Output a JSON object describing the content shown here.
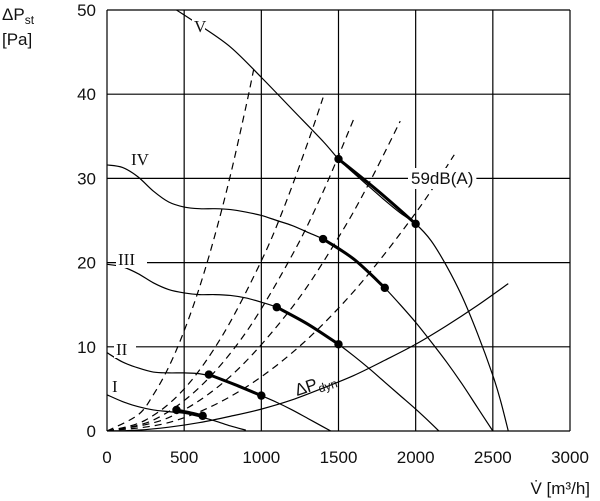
{
  "chart_data": {
    "type": "line",
    "title": "",
    "xlabel": "V̇ [m³/h]",
    "ylabel_main": "ΔP",
    "ylabel_sub": "st",
    "ylabel_unit": "[Pa]",
    "xlim": [
      0,
      3000
    ],
    "ylim": [
      0,
      50
    ],
    "x_ticks": [
      0,
      500,
      1000,
      1500,
      2000,
      2500,
      3000
    ],
    "y_ticks": [
      0,
      10,
      20,
      30,
      40,
      50
    ],
    "grid": true,
    "fan_curves": [
      {
        "label": "I",
        "points": [
          [
            0,
            4.3
          ],
          [
            100,
            3.5
          ],
          [
            200,
            2.9
          ],
          [
            300,
            2.5
          ],
          [
            400,
            2.3
          ],
          [
            500,
            2.1
          ],
          [
            600,
            1.7
          ],
          [
            700,
            1.2
          ],
          [
            800,
            0.6
          ],
          [
            900,
            0.1
          ]
        ]
      },
      {
        "label": "II",
        "points": [
          [
            0,
            9.3
          ],
          [
            100,
            8.2
          ],
          [
            200,
            7.5
          ],
          [
            300,
            7.0
          ],
          [
            400,
            6.9
          ],
          [
            500,
            6.9
          ],
          [
            600,
            6.8
          ],
          [
            700,
            6.4
          ],
          [
            800,
            5.7
          ],
          [
            900,
            5.0
          ],
          [
            1000,
            4.2
          ],
          [
            1100,
            3.4
          ],
          [
            1200,
            2.5
          ],
          [
            1300,
            1.5
          ],
          [
            1400,
            0.5
          ],
          [
            1450,
            0
          ]
        ]
      },
      {
        "label": "III",
        "points": [
          [
            0,
            19.8
          ],
          [
            100,
            19.5
          ],
          [
            200,
            18.7
          ],
          [
            300,
            17.6
          ],
          [
            400,
            16.8
          ],
          [
            500,
            16.4
          ],
          [
            600,
            16.2
          ],
          [
            700,
            16.2
          ],
          [
            800,
            16.1
          ],
          [
            900,
            15.8
          ],
          [
            1000,
            15.3
          ],
          [
            1100,
            14.7
          ],
          [
            1200,
            13.8
          ],
          [
            1300,
            12.8
          ],
          [
            1400,
            11.6
          ],
          [
            1500,
            10.3
          ],
          [
            1600,
            8.9
          ],
          [
            1700,
            7.4
          ],
          [
            1800,
            5.8
          ],
          [
            1900,
            4.2
          ],
          [
            2000,
            2.6
          ],
          [
            2100,
            0.9
          ],
          [
            2150,
            0
          ]
        ]
      },
      {
        "label": "IV",
        "points": [
          [
            0,
            31.6
          ],
          [
            100,
            31.3
          ],
          [
            200,
            30.2
          ],
          [
            300,
            28.5
          ],
          [
            400,
            27.2
          ],
          [
            500,
            26.6
          ],
          [
            600,
            26.4
          ],
          [
            700,
            26.4
          ],
          [
            800,
            26.3
          ],
          [
            900,
            26.0
          ],
          [
            1000,
            25.6
          ],
          [
            1100,
            25.0
          ],
          [
            1200,
            24.4
          ],
          [
            1300,
            23.6
          ],
          [
            1400,
            22.8
          ],
          [
            1500,
            21.8
          ],
          [
            1600,
            20.4
          ],
          [
            1700,
            18.8
          ],
          [
            1800,
            17.0
          ],
          [
            1900,
            15.0
          ],
          [
            2000,
            12.9
          ],
          [
            2100,
            10.6
          ],
          [
            2200,
            8.2
          ],
          [
            2300,
            5.6
          ],
          [
            2400,
            2.8
          ],
          [
            2500,
            0
          ]
        ]
      },
      {
        "label": "V",
        "points": [
          [
            450,
            50
          ],
          [
            600,
            48.2
          ],
          [
            800,
            45.6
          ],
          [
            1000,
            42.0
          ],
          [
            1200,
            38.2
          ],
          [
            1400,
            34.4
          ],
          [
            1500,
            32.3
          ],
          [
            1600,
            30.6
          ],
          [
            1700,
            29.0
          ],
          [
            1800,
            27.4
          ],
          [
            1900,
            25.9
          ],
          [
            2000,
            24.6
          ],
          [
            2100,
            22.6
          ],
          [
            2200,
            19.6
          ],
          [
            2300,
            16.0
          ],
          [
            2400,
            11.6
          ],
          [
            2500,
            6.6
          ],
          [
            2550,
            3.6
          ],
          [
            2600,
            0
          ]
        ]
      }
    ],
    "dyn_curve": {
      "label_main": "ΔP",
      "label_sub": "dyn",
      "points": [
        [
          0,
          0
        ],
        [
          200,
          0.1
        ],
        [
          400,
          0.45
        ],
        [
          600,
          1.0
        ],
        [
          800,
          1.75
        ],
        [
          1000,
          2.6
        ],
        [
          1200,
          3.7
        ],
        [
          1400,
          5.1
        ],
        [
          1600,
          6.6
        ],
        [
          1800,
          8.4
        ],
        [
          2000,
          10.3
        ],
        [
          2200,
          12.5
        ],
        [
          2400,
          14.9
        ],
        [
          2600,
          17.5
        ]
      ]
    },
    "system_curves": [
      {
        "points": [
          [
            0,
            0
          ],
          [
            200,
            1.9
          ],
          [
            300,
            4.3
          ],
          [
            400,
            7.6
          ],
          [
            500,
            11.9
          ],
          [
            600,
            17.1
          ],
          [
            700,
            23.3
          ],
          [
            800,
            30.4
          ],
          [
            900,
            38.5
          ],
          [
            950,
            42.9
          ]
        ]
      },
      {
        "points": [
          [
            0,
            0
          ],
          [
            250,
            1.3
          ],
          [
            500,
            5.0
          ],
          [
            750,
            11.4
          ],
          [
            1000,
            20.2
          ],
          [
            1150,
            26.7
          ],
          [
            1300,
            34.2
          ],
          [
            1400,
            39.6
          ]
        ]
      },
      {
        "points": [
          [
            0,
            0
          ],
          [
            300,
            1.3
          ],
          [
            600,
            5.2
          ],
          [
            900,
            11.7
          ],
          [
            1200,
            20.9
          ],
          [
            1400,
            28.4
          ],
          [
            1600,
            37.1
          ]
        ]
      },
      {
        "points": [
          [
            0,
            0
          ],
          [
            400,
            1.6
          ],
          [
            800,
            6.5
          ],
          [
            1200,
            14.7
          ],
          [
            1500,
            23.0
          ],
          [
            1700,
            29.5
          ],
          [
            1900,
            36.8
          ]
        ]
      },
      {
        "points": [
          [
            0,
            0
          ],
          [
            400,
            1.0
          ],
          [
            800,
            4.1
          ],
          [
            1200,
            9.3
          ],
          [
            1600,
            16.6
          ],
          [
            2000,
            25.9
          ],
          [
            2250,
            32.8
          ]
        ]
      }
    ],
    "sound_isolines": [
      {
        "points": [
          [
            450,
            2.5
          ],
          [
            530,
            2.2
          ],
          [
            620,
            1.8
          ]
        ]
      },
      {
        "points": [
          [
            660,
            6.7
          ],
          [
            830,
            5.5
          ],
          [
            1000,
            4.2
          ]
        ]
      },
      {
        "points": [
          [
            1100,
            14.7
          ],
          [
            1300,
            12.7
          ],
          [
            1500,
            10.3
          ]
        ]
      },
      {
        "points": [
          [
            1400,
            22.8
          ],
          [
            1600,
            20.4
          ],
          [
            1800,
            17.0
          ]
        ]
      },
      {
        "points": [
          [
            1500,
            32.3
          ],
          [
            1750,
            28.6
          ],
          [
            2000,
            24.6
          ]
        ]
      }
    ],
    "annotation": "59dB(A)"
  }
}
